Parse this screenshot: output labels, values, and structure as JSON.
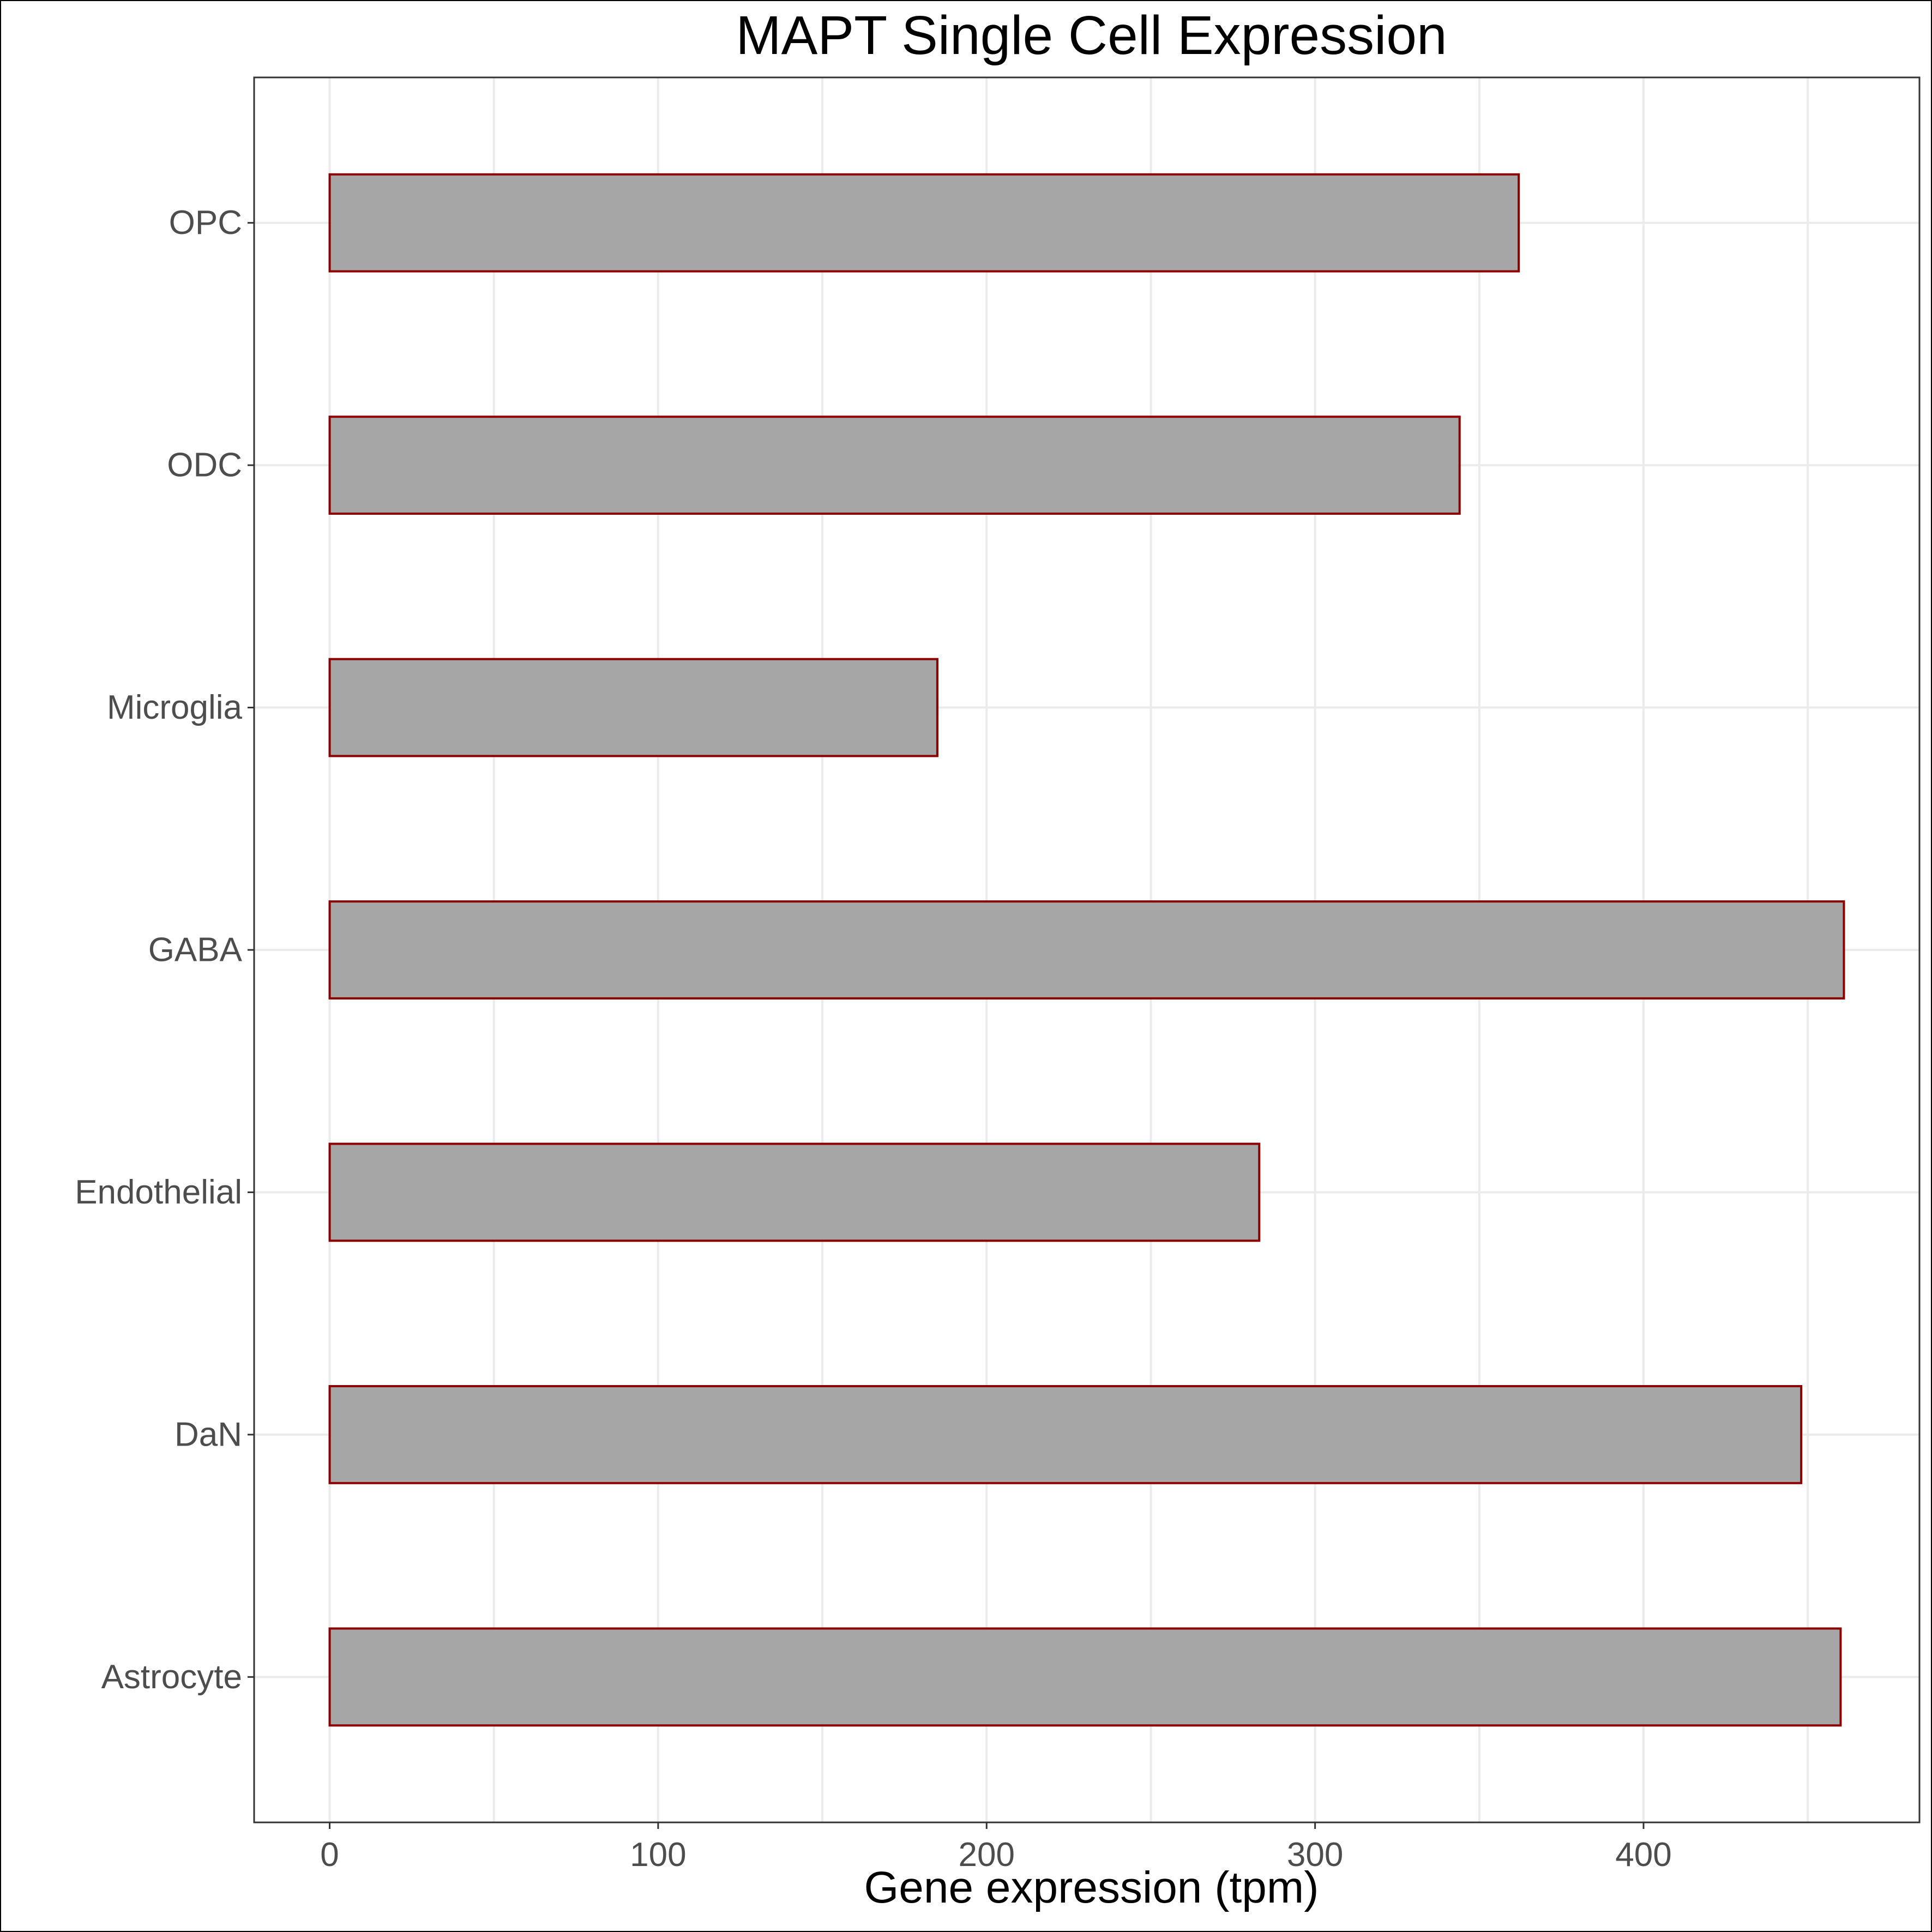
{
  "chart_data": {
    "type": "bar",
    "orientation": "horizontal",
    "title": "MAPT Single Cell Expression",
    "xlabel": "Gene expression (tpm)",
    "ylabel": "",
    "categories": [
      "OPC",
      "ODC",
      "Microglia",
      "GABA",
      "Endothelial",
      "DaN",
      "Astrocyte"
    ],
    "values": [
      362,
      344,
      185,
      461,
      283,
      448,
      460
    ],
    "xlim": [
      -23,
      484
    ],
    "xticks": [
      0,
      100,
      200,
      300,
      400
    ],
    "grid": true,
    "legend": "none",
    "colors": {
      "bar_fill": "#a6a6a6",
      "bar_border": "#8b0000",
      "grid": "#ebebeb",
      "panel_border": "#333333"
    }
  }
}
